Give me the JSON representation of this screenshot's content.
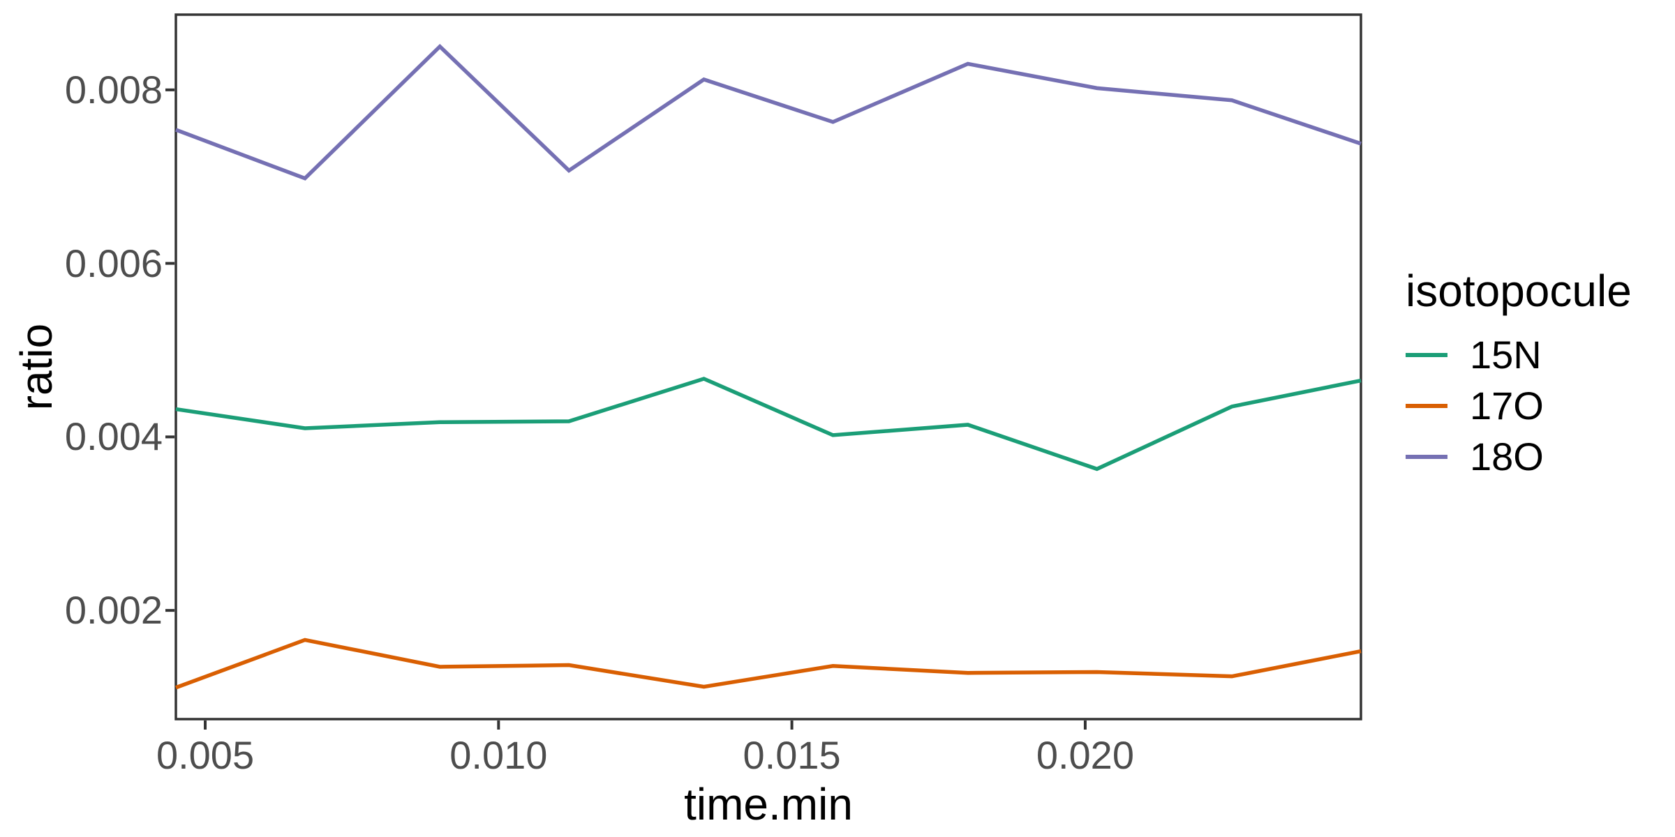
{
  "chart_data": {
    "type": "line",
    "xlabel": "time.min",
    "ylabel": "ratio",
    "legend_title": "isotopocule",
    "legend_position": "right",
    "grid": false,
    "background": "#FFFFFF",
    "axis_color": "#333333",
    "tick_label_color": "#4D4D4D",
    "title_color": "#000000",
    "x": [
      0.0045,
      0.0067,
      0.009,
      0.0112,
      0.0135,
      0.0157,
      0.018,
      0.0202,
      0.0225,
      0.0247
    ],
    "series": [
      {
        "name": "15N",
        "color": "#1B9E77",
        "values": [
          0.00432,
          0.0041,
          0.00417,
          0.00418,
          0.00467,
          0.00402,
          0.00414,
          0.00363,
          0.00435,
          0.00465
        ]
      },
      {
        "name": "17O",
        "color": "#D95F02",
        "values": [
          0.00111,
          0.00166,
          0.00135,
          0.00137,
          0.00112,
          0.00136,
          0.00128,
          0.00129,
          0.00124,
          0.00153
        ]
      },
      {
        "name": "18O",
        "color": "#7570B3",
        "values": [
          0.00754,
          0.00698,
          0.0085,
          0.00707,
          0.00812,
          0.00763,
          0.0083,
          0.00802,
          0.00788,
          0.00738
        ]
      }
    ],
    "x_ticks": {
      "values": [
        0.005,
        0.01,
        0.015,
        0.02
      ],
      "labels": [
        "0.005",
        "0.010",
        "0.015",
        "0.020"
      ]
    },
    "y_ticks": {
      "values": [
        0.002,
        0.004,
        0.006,
        0.008
      ],
      "labels": [
        "0.002",
        "0.004",
        "0.006",
        "0.008"
      ]
    },
    "xlim": [
      0.0045,
      0.0247
    ],
    "ylim": [
      0.000747,
      0.008867
    ]
  }
}
